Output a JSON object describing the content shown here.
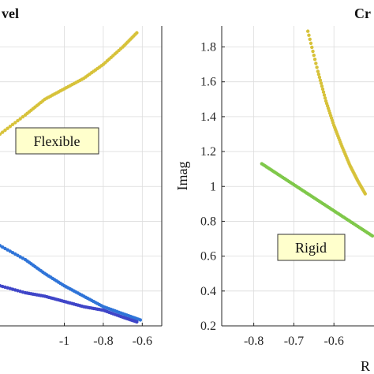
{
  "chart_data": [
    {
      "type": "scatter",
      "title": "vel",
      "xlabel": "",
      "ylabel": "",
      "xlim": [
        -1.33,
        -0.5
      ],
      "ylim": [
        0.2,
        1.92
      ],
      "xticks": [
        -1,
        -0.8,
        -0.6
      ],
      "xtick_labels": [
        "-1",
        "-0.8",
        "-0.6"
      ],
      "grid": true,
      "annotation": "Flexible",
      "series": [
        {
          "color": "#d7c23a",
          "values": [
            [
              -1.33,
              1.3
            ],
            [
              -1.2,
              1.41
            ],
            [
              -1.1,
              1.5
            ],
            [
              -1.0,
              1.56
            ],
            [
              -0.9,
              1.62
            ],
            [
              -0.8,
              1.7
            ],
            [
              -0.7,
              1.8
            ],
            [
              -0.62,
              1.89
            ]
          ]
        },
        {
          "color": "#2f74d8",
          "values": [
            [
              -1.33,
              0.66
            ],
            [
              -1.2,
              0.58
            ],
            [
              -1.1,
              0.5
            ],
            [
              -1.0,
              0.43
            ],
            [
              -0.9,
              0.37
            ],
            [
              -0.8,
              0.31
            ],
            [
              -0.7,
              0.27
            ],
            [
              -0.6,
              0.23
            ]
          ]
        },
        {
          "color": "#3f45c8",
          "values": [
            [
              -1.33,
              0.43
            ],
            [
              -1.2,
              0.39
            ],
            [
              -1.1,
              0.37
            ],
            [
              -1.0,
              0.34
            ],
            [
              -0.9,
              0.31
            ],
            [
              -0.8,
              0.29
            ],
            [
              -0.7,
              0.25
            ],
            [
              -0.62,
              0.22
            ]
          ]
        }
      ]
    },
    {
      "type": "scatter",
      "title": "Cr",
      "xlabel": "R",
      "ylabel": "Imag",
      "xlim": [
        -0.88,
        -0.5
      ],
      "ylim": [
        0.2,
        1.92
      ],
      "xticks": [
        -0.8,
        -0.7,
        -0.6
      ],
      "xtick_labels": [
        "-0.8",
        "-0.7",
        "-0.6"
      ],
      "yticks": [
        0.2,
        0.4,
        0.6,
        0.8,
        1,
        1.2,
        1.4,
        1.6,
        1.8
      ],
      "ytick_labels": [
        "0.2",
        "0.4",
        "0.6",
        "0.8",
        "1",
        "1.2",
        "1.4",
        "1.6",
        "1.8"
      ],
      "grid": true,
      "annotation": "Rigid",
      "series": [
        {
          "color": "#d7c23a",
          "values": [
            [
              -0.665,
              1.89
            ],
            [
              -0.64,
              1.66
            ],
            [
              -0.62,
              1.49
            ],
            [
              -0.6,
              1.35
            ],
            [
              -0.58,
              1.23
            ],
            [
              -0.56,
              1.12
            ],
            [
              -0.54,
              1.03
            ],
            [
              -0.52,
              0.95
            ]
          ]
        },
        {
          "color": "#7fc84a",
          "values": [
            [
              -0.78,
              1.13
            ],
            [
              -0.74,
              1.07
            ],
            [
              -0.7,
              1.01
            ],
            [
              -0.66,
              0.95
            ],
            [
              -0.62,
              0.89
            ],
            [
              -0.58,
              0.83
            ],
            [
              -0.54,
              0.77
            ],
            [
              -0.5,
              0.71
            ]
          ]
        }
      ]
    }
  ]
}
